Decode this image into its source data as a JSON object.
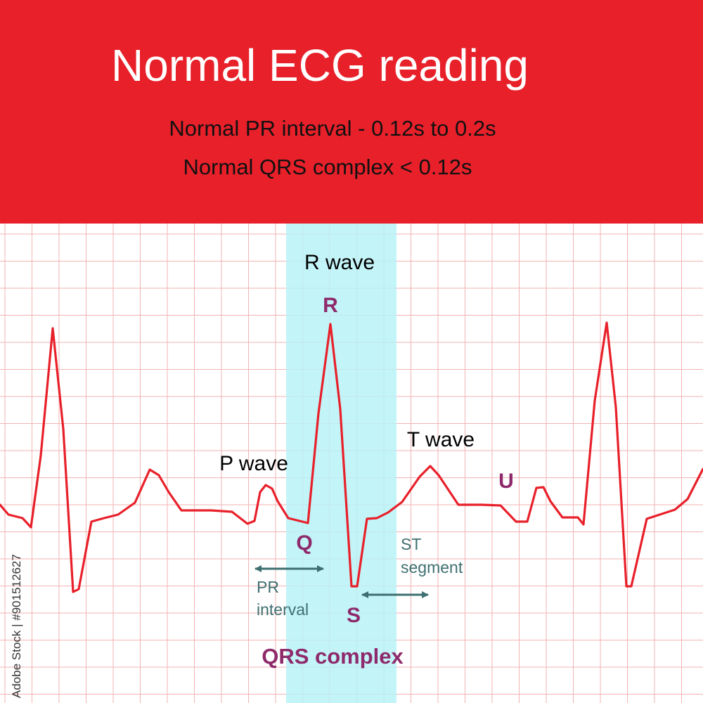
{
  "header": {
    "title": "Normal ECG reading",
    "line1": "Normal PR interval - 0.12s to 0.2s",
    "line2": "Normal QRS complex < 0.12s"
  },
  "labels": {
    "r_wave": "R wave",
    "r": "R",
    "p_wave": "P wave",
    "t_wave": "T wave",
    "u": "U",
    "q": "Q",
    "s": "S",
    "st_line1": "ST",
    "st_line2": "segment",
    "pr_line1": "PR",
    "pr_line2": "interval",
    "qrs_complex": "QRS complex"
  },
  "credit": "Adobe Stock | #901512627",
  "colors": {
    "header_bg": "#e8202a",
    "trace": "#e8202a",
    "grid": "#f3b3b3",
    "qrs_band": "#b8f2f7",
    "label_purple": "#8e2a6b",
    "label_teal": "#3f6f70"
  }
}
